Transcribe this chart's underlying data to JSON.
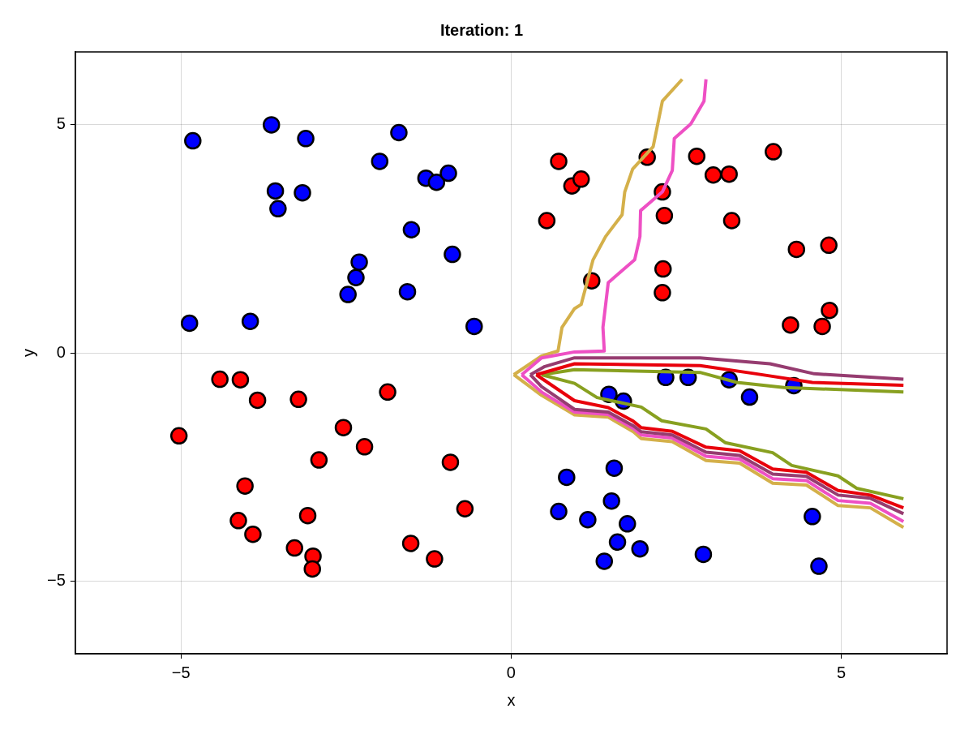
{
  "chart_data": {
    "type": "scatter",
    "title": "Iteration: 1",
    "xlabel": "x",
    "ylabel": "y",
    "xlim": [
      -6.6,
      6.6
    ],
    "ylim": [
      -6.6,
      6.6
    ],
    "xticks": [
      {
        "value": -5,
        "label": "−5"
      },
      0,
      5
    ],
    "yticks": [
      {
        "value": -5,
        "label": "−5"
      },
      0,
      5
    ],
    "grid": true,
    "legend": false,
    "series": [
      {
        "type": "scatter",
        "marker": "circle",
        "color": "#0000ff",
        "x": [
          -4.82,
          -3.63,
          -3.11,
          -1.7,
          -1.99,
          -1.29,
          -1.13,
          -0.95,
          -3.57,
          -3.53,
          -3.16,
          -1.51,
          -0.89,
          -2.3,
          -2.35,
          -2.47,
          -1.57,
          -4.87,
          -3.95,
          -0.56,
          2.34,
          2.68,
          3.3,
          4.28,
          3.61,
          1.48,
          1.7,
          0.84,
          1.56,
          0.72,
          1.16,
          1.52,
          1.76,
          1.61,
          1.95,
          1.41,
          2.91,
          4.56,
          4.66
        ],
        "values": [
          4.65,
          5.0,
          4.7,
          4.83,
          4.2,
          3.83,
          3.74,
          3.94,
          3.55,
          3.16,
          3.51,
          2.7,
          2.16,
          1.99,
          1.65,
          1.28,
          1.34,
          0.65,
          0.69,
          0.58,
          -0.54,
          -0.54,
          -0.59,
          -0.72,
          -0.97,
          -0.91,
          -1.06,
          -2.73,
          -2.53,
          -3.48,
          -3.66,
          -3.25,
          -3.75,
          -4.15,
          -4.3,
          -4.57,
          -4.42,
          -3.59,
          -4.68
        ]
      },
      {
        "type": "scatter",
        "marker": "circle",
        "color": "#ff0000",
        "x": [
          -4.41,
          -4.1,
          -3.84,
          -3.22,
          -1.87,
          -5.03,
          -2.54,
          -2.22,
          -2.91,
          -0.92,
          -4.03,
          -0.7,
          -4.13,
          -3.91,
          -3.08,
          -3.28,
          -3.0,
          -3.01,
          -1.52,
          -1.16,
          0.72,
          0.92,
          1.06,
          0.54,
          2.06,
          2.29,
          2.32,
          2.81,
          3.06,
          3.3,
          3.97,
          3.34,
          1.22,
          2.3,
          2.29,
          4.32,
          4.81,
          4.82,
          4.23,
          4.71
        ],
        "values": [
          -0.58,
          -0.59,
          -1.04,
          -1.02,
          -0.86,
          -1.82,
          -1.64,
          -2.06,
          -2.35,
          -2.4,
          -2.92,
          -3.42,
          -3.68,
          -3.98,
          -3.57,
          -4.28,
          -4.46,
          -4.74,
          -4.18,
          -4.52,
          4.2,
          3.66,
          3.81,
          2.9,
          4.29,
          3.53,
          3.01,
          4.31,
          3.9,
          3.92,
          4.41,
          2.9,
          1.58,
          1.84,
          1.32,
          2.27,
          2.36,
          0.93,
          0.61,
          0.58
        ]
      },
      {
        "type": "line",
        "marker": "none",
        "line_style": "solid",
        "color": "#963c70",
        "x": [
          0.29,
          0.51,
          0.96,
          2.86,
          3.92,
          4.59,
          5.94
        ],
        "values": [
          -0.48,
          -0.3,
          -0.11,
          -0.11,
          -0.24,
          -0.46,
          -0.58
        ]
      },
      {
        "type": "line",
        "marker": "none",
        "line_style": "solid",
        "color": "#e8000b",
        "x": [
          0.38,
          0.96,
          2.86,
          3.71,
          4.56,
          5.94
        ],
        "values": [
          -0.48,
          -0.24,
          -0.28,
          -0.46,
          -0.65,
          -0.71
        ]
      },
      {
        "type": "line",
        "marker": "none",
        "line_style": "solid",
        "color": "#88a020",
        "x": [
          0.46,
          0.96,
          2.86,
          3.42,
          4.13,
          5.94
        ],
        "values": [
          -0.48,
          -0.37,
          -0.43,
          -0.65,
          -0.76,
          -0.86
        ]
      },
      {
        "type": "line",
        "marker": "none",
        "line_style": "solid",
        "color": "#88a020",
        "x": [
          0.46,
          0.96,
          1.3,
          1.97,
          2.28,
          2.95,
          3.24,
          3.96,
          4.25,
          4.95,
          5.23,
          5.94
        ],
        "values": [
          -0.48,
          -0.67,
          -0.98,
          -1.19,
          -1.49,
          -1.67,
          -1.97,
          -2.19,
          -2.47,
          -2.7,
          -2.97,
          -3.2
        ]
      },
      {
        "type": "line",
        "marker": "none",
        "line_style": "solid",
        "color": "#e8000b",
        "x": [
          0.38,
          0.96,
          1.47,
          1.85,
          1.97,
          2.44,
          2.95,
          3.46,
          3.96,
          4.47,
          4.95,
          5.44,
          5.94
        ],
        "values": [
          -0.48,
          -1.05,
          -1.2,
          -1.5,
          -1.64,
          -1.72,
          -2.07,
          -2.15,
          -2.55,
          -2.62,
          -3.02,
          -3.12,
          -3.4
        ]
      },
      {
        "type": "line",
        "marker": "none",
        "line_style": "solid",
        "color": "#963c70",
        "x": [
          0.29,
          0.46,
          0.96,
          1.47,
          1.85,
          1.97,
          2.44,
          2.95,
          3.46,
          3.96,
          4.47,
          4.95,
          5.44,
          5.94
        ],
        "values": [
          -0.48,
          -0.74,
          -1.24,
          -1.3,
          -1.6,
          -1.73,
          -1.8,
          -2.18,
          -2.25,
          -2.66,
          -2.71,
          -3.12,
          -3.19,
          -3.53
        ]
      },
      {
        "type": "line",
        "marker": "none",
        "line_style": "solid",
        "color": "#ee50c4",
        "x": [
          0.16,
          0.46,
          0.96,
          1.47,
          1.85,
          1.97,
          2.44,
          2.95,
          3.46,
          3.96,
          4.47,
          4.95,
          5.44,
          5.94
        ],
        "values": [
          -0.48,
          -0.86,
          -1.3,
          -1.35,
          -1.66,
          -1.8,
          -1.87,
          -2.27,
          -2.33,
          -2.76,
          -2.8,
          -3.24,
          -3.3,
          -3.7
        ]
      },
      {
        "type": "line",
        "marker": "none",
        "line_style": "solid",
        "color": "#d4b04a",
        "x": [
          0.04,
          0.46,
          0.96,
          1.47,
          1.85,
          1.97,
          2.44,
          2.95,
          3.46,
          3.96,
          4.47,
          4.95,
          5.44,
          5.94
        ],
        "values": [
          -0.48,
          -0.93,
          -1.36,
          -1.41,
          -1.73,
          -1.88,
          -1.95,
          -2.36,
          -2.42,
          -2.86,
          -2.9,
          -3.35,
          -3.4,
          -3.83
        ]
      },
      {
        "type": "line",
        "marker": "none",
        "line_style": "solid",
        "color": "#ee50c4",
        "x": [
          0.16,
          0.46,
          0.96,
          1.41,
          1.39,
          1.47,
          1.87,
          1.95,
          1.96,
          2.29,
          2.44,
          2.47,
          2.72,
          2.92,
          2.95
        ],
        "values": [
          -0.48,
          -0.11,
          0.02,
          0.04,
          0.56,
          1.54,
          2.04,
          2.55,
          3.12,
          3.53,
          4.0,
          4.7,
          5.02,
          5.52,
          6.0
        ]
      },
      {
        "type": "line",
        "marker": "none",
        "line_style": "solid",
        "color": "#d4b04a",
        "x": [
          0.04,
          0.46,
          0.71,
          0.77,
          0.96,
          1.06,
          1.24,
          1.43,
          1.68,
          1.72,
          1.84,
          2.15,
          2.29,
          2.59
        ],
        "values": [
          -0.48,
          -0.07,
          0.04,
          0.56,
          0.97,
          1.06,
          2.04,
          2.55,
          3.03,
          3.53,
          4.03,
          4.52,
          5.52,
          6.0
        ]
      }
    ]
  }
}
